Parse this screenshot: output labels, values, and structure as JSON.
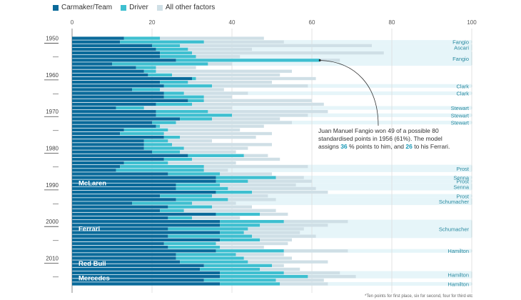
{
  "chart_data": {
    "type": "bar",
    "orientation": "horizontal-stacked",
    "title": "",
    "xlabel": "",
    "ylabel": "",
    "xlim": [
      0,
      100
    ],
    "xticks": [
      0,
      20,
      40,
      60,
      80,
      100
    ],
    "grid": true,
    "legend_position": "top-left",
    "legend": [
      {
        "name": "Carmaker/Team",
        "color": "#0a6a9a"
      },
      {
        "name": "Driver",
        "color": "#3ebfd0"
      },
      {
        "name": "All other factors",
        "color": "#cfdfe6"
      }
    ],
    "year_labels": [
      {
        "label": "1950",
        "season": 1950
      },
      {
        "label": "—",
        "season": 1955
      },
      {
        "label": "1960",
        "season": 1960
      },
      {
        "label": "—",
        "season": 1965
      },
      {
        "label": "1970",
        "season": 1970
      },
      {
        "label": "—",
        "season": 1975
      },
      {
        "label": "1980",
        "season": 1980
      },
      {
        "label": "—",
        "season": 1985
      },
      {
        "label": "1990",
        "season": 1990
      },
      {
        "label": "—",
        "season": 1995
      },
      {
        "label": "2000",
        "season": 2000
      },
      {
        "label": "—",
        "season": 2005
      },
      {
        "label": "2010",
        "season": 2010
      },
      {
        "label": "—",
        "season": 2015
      }
    ],
    "team_labels": [
      {
        "label": "McLaren",
        "from": 1988,
        "to": 1991
      },
      {
        "label": "Ferrari",
        "from": 2000,
        "to": 2004
      },
      {
        "label": "Red Bull",
        "from": 2010,
        "to": 2013
      },
      {
        "label": "Mercedes",
        "from": 2014,
        "to": 2017
      }
    ],
    "champion_highlights": [
      {
        "driver": "Fangio",
        "from": 1951,
        "to": 1951
      },
      {
        "driver": "Ascari",
        "from": 1952,
        "to": 1953
      },
      {
        "driver": "Fangio",
        "from": 1954,
        "to": 1957
      },
      {
        "driver": "Clark",
        "from": 1963,
        "to": 1963
      },
      {
        "driver": "Clark",
        "from": 1965,
        "to": 1965
      },
      {
        "driver": "Stewart",
        "from": 1969,
        "to": 1969
      },
      {
        "driver": "Stewart",
        "from": 1971,
        "to": 1971
      },
      {
        "driver": "Stewart",
        "from": 1973,
        "to": 1973
      },
      {
        "driver": "Prost",
        "from": 1985,
        "to": 1986
      },
      {
        "driver": "Senna",
        "from": 1988,
        "to": 1988
      },
      {
        "driver": "Prost",
        "from": 1989,
        "to": 1989
      },
      {
        "driver": "Senna",
        "from": 1990,
        "to": 1991
      },
      {
        "driver": "Prost",
        "from": 1993,
        "to": 1993
      },
      {
        "driver": "Schumacher",
        "from": 1994,
        "to": 1995
      },
      {
        "driver": "Schumacher",
        "from": 2000,
        "to": 2004
      },
      {
        "driver": "Hamilton",
        "from": 2008,
        "to": 2008
      },
      {
        "driver": "Hamilton",
        "from": 2014,
        "to": 2015
      },
      {
        "driver": "Hamilton",
        "from": 2017,
        "to": 2017
      }
    ],
    "seasons": [
      1950,
      1951,
      1952,
      1953,
      1954,
      1955,
      1956,
      1957,
      1958,
      1959,
      1960,
      1961,
      1962,
      1963,
      1964,
      1965,
      1966,
      1967,
      1968,
      1969,
      1970,
      1971,
      1972,
      1973,
      1974,
      1975,
      1976,
      1977,
      1978,
      1979,
      1980,
      1981,
      1982,
      1983,
      1984,
      1985,
      1986,
      1987,
      1988,
      1989,
      1990,
      1991,
      1992,
      1993,
      1994,
      1995,
      1996,
      1997,
      1998,
      1999,
      2000,
      2001,
      2002,
      2003,
      2004,
      2005,
      2006,
      2007,
      2008,
      2009,
      2010,
      2011,
      2012,
      2013,
      2014,
      2015,
      2016,
      2017
    ],
    "series": [
      {
        "name": "Carmaker/Team",
        "values": [
          13,
          12,
          20,
          21,
          22,
          22,
          26,
          10,
          16,
          18,
          19,
          30,
          22,
          23,
          15,
          23,
          23,
          29,
          21,
          11,
          21,
          21,
          27,
          20,
          21,
          13,
          12,
          23,
          18,
          18,
          18,
          20,
          29,
          23,
          13,
          12,
          11,
          24,
          36,
          36,
          26,
          26,
          36,
          22,
          26,
          15,
          24,
          22,
          36,
          24,
          37,
          37,
          24,
          37,
          24,
          37,
          23,
          24,
          36,
          26,
          26,
          27,
          33,
          32,
          37,
          37,
          33,
          37
        ]
      },
      {
        "name": "Driver",
        "values": [
          9,
          21,
          7,
          8,
          8,
          9,
          36,
          24,
          5,
          3,
          6,
          1,
          7,
          12,
          7,
          5,
          10,
          4,
          9,
          7,
          13,
          19,
          8,
          6,
          1,
          11,
          11,
          4,
          6,
          7,
          10,
          7,
          14,
          7,
          11,
          21,
          22,
          13,
          15,
          8,
          11,
          13,
          9,
          13,
          13,
          15,
          11,
          6,
          11,
          6,
          16,
          10,
          20,
          6,
          21,
          10,
          13,
          13,
          17,
          15,
          17,
          17,
          17,
          15,
          16,
          22,
          18,
          15
        ]
      },
      {
        "name": "All other factors",
        "values": [
          26,
          20,
          48,
          16,
          48,
          11,
          5,
          6,
          10,
          34,
          27,
          30,
          21,
          24,
          16,
          16,
          7,
          27,
          33,
          22,
          30,
          19,
          17,
          29,
          26,
          18,
          27,
          19,
          11,
          25,
          16,
          14,
          6,
          22,
          17,
          26,
          6,
          13,
          7,
          16,
          19,
          22,
          19,
          14,
          12,
          11,
          10,
          23,
          7,
          12,
          16,
          17,
          14,
          14,
          16,
          8,
          18,
          11,
          16,
          12,
          12,
          20,
          3,
          10,
          14,
          12,
          12,
          12
        ]
      }
    ]
  },
  "annotation": {
    "line1": "Juan Manuel Fangio won 49 of a possible 80",
    "line2": "standardised points in 1956 (61%). The model",
    "line3_a": "assigns ",
    "line3_hl1": "36",
    "line3_b": " % points to him, and ",
    "line3_hl2": "26",
    "line3_c": " to his Ferrari."
  },
  "footnote": "*Ten points for first place, six for second, four for third etc"
}
